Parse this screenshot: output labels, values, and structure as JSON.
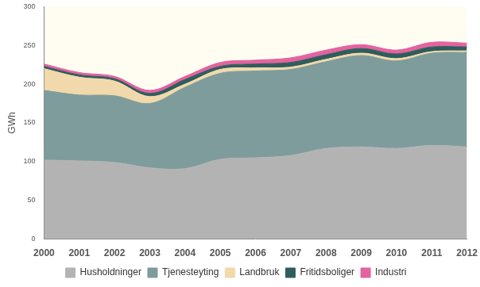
{
  "chart_data": {
    "type": "area",
    "stacked": true,
    "y_label": "GWh",
    "categories": [
      "2000",
      "2001",
      "2002",
      "2003",
      "2004",
      "2005",
      "2006",
      "2007",
      "2008",
      "2009",
      "2010",
      "2011",
      "2012"
    ],
    "series": [
      {
        "name": "Husholdninger",
        "color": "#b3b3b3",
        "values": [
          102,
          101,
          99,
          92,
          91,
          103,
          105,
          108,
          117,
          119,
          117,
          121,
          119
        ]
      },
      {
        "name": "Tjenesteyting",
        "color": "#7f9c9c",
        "values": [
          90,
          85,
          86,
          83,
          105,
          111,
          112,
          111,
          112,
          118,
          113,
          119,
          122
        ]
      },
      {
        "name": "Landbruk",
        "color": "#f2d9ab",
        "values": [
          28,
          23,
          19,
          9,
          4,
          5,
          4,
          3,
          3,
          3,
          3,
          2,
          2
        ]
      },
      {
        "name": "Fritidsboliger",
        "color": "#2f5d5d",
        "values": [
          3,
          3,
          3,
          4,
          6,
          4,
          5,
          6,
          6,
          6,
          6,
          6,
          5
        ]
      },
      {
        "name": "Industri",
        "color": "#e3639f",
        "values": [
          3,
          3,
          3,
          4,
          4,
          5,
          5,
          6,
          6,
          5,
          5,
          6,
          5
        ]
      }
    ],
    "ylim": [
      0,
      300
    ],
    "yticks": [
      0,
      50,
      100,
      150,
      200,
      250,
      300
    ],
    "grid": false,
    "legend": "bottom"
  }
}
